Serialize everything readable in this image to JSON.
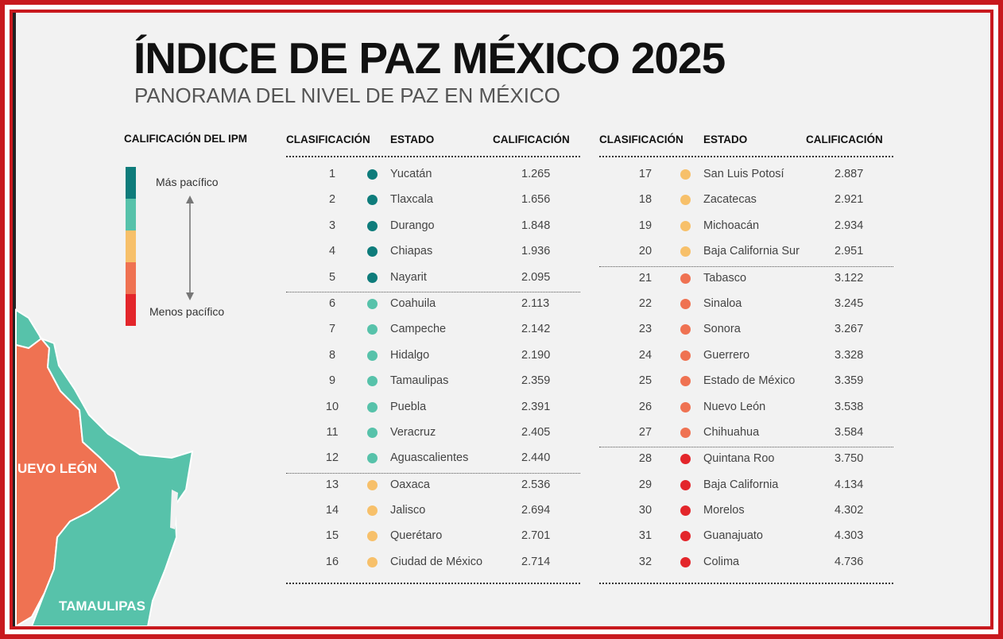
{
  "title": "ÍNDICE DE PAZ MÉXICO 2025",
  "subtitle": "PANORAMA DEL NIVEL DE PAZ EN MÉXICO",
  "legend": {
    "title": "CALIFICACIÓN DEL IPM",
    "top_label": "Más pacífico",
    "bottom_label": "Menos pacífico",
    "colors": [
      "#0e7c7b",
      "#57c2aa",
      "#f7c06a",
      "#ef7252",
      "#e3262b"
    ]
  },
  "map": {
    "labels": [
      "UEVO LEÓN",
      "TAMAULIPAS"
    ]
  },
  "columns": {
    "rank": "CLASIFICACIÓN",
    "state": "ESTADO",
    "score": "CALIFICACIÓN"
  },
  "table_left": [
    {
      "rank": "1",
      "state": "Yucatán",
      "score": "1.265",
      "color": "#0e7c7b"
    },
    {
      "rank": "2",
      "state": "Tlaxcala",
      "score": "1.656",
      "color": "#0e7c7b"
    },
    {
      "rank": "3",
      "state": "Durango",
      "score": "1.848",
      "color": "#0e7c7b"
    },
    {
      "rank": "4",
      "state": "Chiapas",
      "score": "1.936",
      "color": "#0e7c7b"
    },
    {
      "rank": "5",
      "state": "Nayarit",
      "score": "2.095",
      "color": "#0e7c7b"
    },
    {
      "rank": "6",
      "state": "Coahuila",
      "score": "2.113",
      "color": "#57c2aa"
    },
    {
      "rank": "7",
      "state": "Campeche",
      "score": "2.142",
      "color": "#57c2aa"
    },
    {
      "rank": "8",
      "state": "Hidalgo",
      "score": "2.190",
      "color": "#57c2aa"
    },
    {
      "rank": "9",
      "state": "Tamaulipas",
      "score": "2.359",
      "color": "#57c2aa"
    },
    {
      "rank": "10",
      "state": "Puebla",
      "score": "2.391",
      "color": "#57c2aa"
    },
    {
      "rank": "11",
      "state": "Veracruz",
      "score": "2.405",
      "color": "#57c2aa"
    },
    {
      "rank": "12",
      "state": "Aguascalientes",
      "score": "2.440",
      "color": "#57c2aa"
    },
    {
      "rank": "13",
      "state": "Oaxaca",
      "score": "2.536",
      "color": "#f7c06a"
    },
    {
      "rank": "14",
      "state": "Jalisco",
      "score": "2.694",
      "color": "#f7c06a"
    },
    {
      "rank": "15",
      "state": "Querétaro",
      "score": "2.701",
      "color": "#f7c06a"
    },
    {
      "rank": "16",
      "state": "Ciudad de México",
      "score": "2.714",
      "color": "#f7c06a"
    }
  ],
  "table_right": [
    {
      "rank": "17",
      "state": "San Luis Potosí",
      "score": "2.887",
      "color": "#f7c06a"
    },
    {
      "rank": "18",
      "state": "Zacatecas",
      "score": "2.921",
      "color": "#f7c06a"
    },
    {
      "rank": "19",
      "state": "Michoacán",
      "score": "2.934",
      "color": "#f7c06a"
    },
    {
      "rank": "20",
      "state": "Baja California Sur",
      "score": "2.951",
      "color": "#f7c06a"
    },
    {
      "rank": "21",
      "state": "Tabasco",
      "score": "3.122",
      "color": "#ef7252"
    },
    {
      "rank": "22",
      "state": "Sinaloa",
      "score": "3.245",
      "color": "#ef7252"
    },
    {
      "rank": "23",
      "state": "Sonora",
      "score": "3.267",
      "color": "#ef7252"
    },
    {
      "rank": "24",
      "state": "Guerrero",
      "score": "3.328",
      "color": "#ef7252"
    },
    {
      "rank": "25",
      "state": "Estado de México",
      "score": "3.359",
      "color": "#ef7252"
    },
    {
      "rank": "26",
      "state": "Nuevo León",
      "score": "3.538",
      "color": "#ef7252"
    },
    {
      "rank": "27",
      "state": "Chihuahua",
      "score": "3.584",
      "color": "#ef7252"
    },
    {
      "rank": "28",
      "state": "Quintana Roo",
      "score": "3.750",
      "color": "#e3262b"
    },
    {
      "rank": "29",
      "state": "Baja California",
      "score": "4.134",
      "color": "#e3262b"
    },
    {
      "rank": "30",
      "state": "Morelos",
      "score": "4.302",
      "color": "#e3262b"
    },
    {
      "rank": "31",
      "state": "Guanajuato",
      "score": "4.303",
      "color": "#e3262b"
    },
    {
      "rank": "32",
      "state": "Colima",
      "score": "4.736",
      "color": "#e3262b"
    }
  ]
}
